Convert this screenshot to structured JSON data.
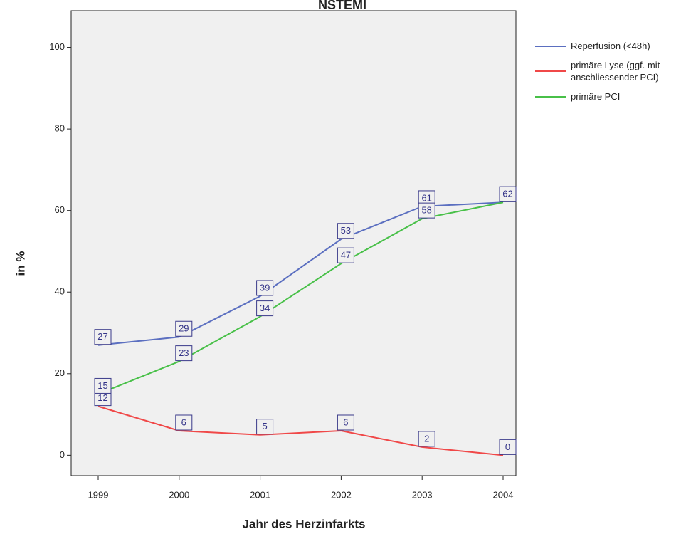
{
  "chart_data": {
    "type": "line",
    "title": "NSTEMI",
    "x_label": "Jahr des Herzinfarkts",
    "y_label": "in %",
    "categories": [
      "1999",
      "2000",
      "2001",
      "2002",
      "2003",
      "2004"
    ],
    "series": [
      {
        "name": "Reperfusion (<48h)",
        "color": "#5b6fc0",
        "values": [
          27,
          29,
          39,
          53,
          61,
          62
        ]
      },
      {
        "name": "primäre Lyse (ggf. mit anschliessender PCI)",
        "color": "#f04848",
        "values": [
          12,
          6,
          5,
          6,
          2,
          0
        ]
      },
      {
        "name": "primäre PCI",
        "color": "#48c048",
        "values": [
          15,
          23,
          34,
          47,
          58,
          62
        ]
      }
    ],
    "ylim": [
      -5,
      109
    ],
    "yticks": [
      0,
      20,
      40,
      60,
      80,
      100
    ],
    "legend": "right"
  }
}
